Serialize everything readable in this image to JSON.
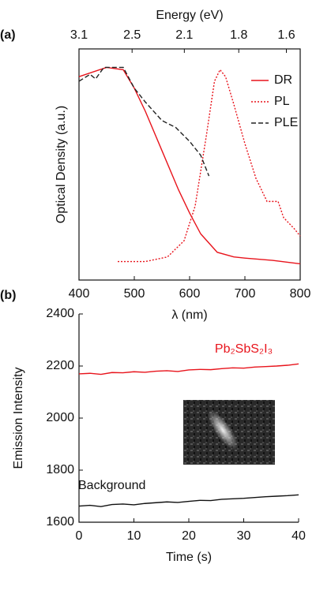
{
  "chart_data": [
    {
      "type": "line",
      "panel_label": "(a)",
      "x_label": "λ (nm)",
      "y_label": "Optical Density (a.u.)",
      "x2_label": "Energy (eV)",
      "xlim": [
        400,
        800
      ],
      "xticks": [
        400,
        500,
        600,
        700,
        800
      ],
      "x2ticks": [
        3.1,
        2.5,
        2.1,
        1.8,
        1.6
      ],
      "x2scale": "energy",
      "ylim": [
        0,
        1
      ],
      "legend": "upper right",
      "box": true,
      "series": [
        {
          "name": "DR",
          "color": "#e8141c",
          "dash": "solid",
          "x": [
            400,
            450,
            480,
            500,
            520,
            550,
            580,
            600,
            620,
            650,
            680,
            700,
            750,
            800
          ],
          "values": [
            0.88,
            0.92,
            0.91,
            0.83,
            0.73,
            0.56,
            0.39,
            0.29,
            0.2,
            0.12,
            0.1,
            0.095,
            0.085,
            0.07
          ]
        },
        {
          "name": "PL",
          "color": "#e8141c",
          "dash": "dotted",
          "x": [
            470,
            520,
            560,
            590,
            610,
            630,
            645,
            655,
            665,
            680,
            700,
            720,
            740,
            760,
            770,
            790,
            800
          ],
          "values": [
            0.08,
            0.08,
            0.1,
            0.17,
            0.32,
            0.62,
            0.86,
            0.91,
            0.88,
            0.76,
            0.59,
            0.44,
            0.34,
            0.34,
            0.27,
            0.22,
            0.19
          ]
        },
        {
          "name": "PLE",
          "color": "#222222",
          "dash": "dashed",
          "x": [
            400,
            420,
            430,
            445,
            480,
            500,
            520,
            550,
            575,
            600,
            620,
            635
          ],
          "values": [
            0.86,
            0.89,
            0.87,
            0.92,
            0.92,
            0.83,
            0.77,
            0.69,
            0.66,
            0.6,
            0.54,
            0.45
          ]
        }
      ]
    },
    {
      "type": "line",
      "panel_label": "(b)",
      "x_label": "Time (s)",
      "y_label": "Emission Intensity",
      "xlim": [
        0,
        40
      ],
      "xticks": [
        0,
        10,
        20,
        30,
        40
      ],
      "ylim": [
        1600,
        2400
      ],
      "yticks": [
        1600,
        1800,
        2000,
        2200,
        2400
      ],
      "box": false,
      "series": [
        {
          "name": "Pb₂SbS₂I₃",
          "color": "#e8141c",
          "dash": "solid",
          "x": [
            0,
            2,
            4,
            6,
            8,
            10,
            12,
            14,
            16,
            18,
            20,
            22,
            24,
            26,
            28,
            30,
            32,
            34,
            36,
            38,
            40
          ],
          "values": [
            2170,
            2172,
            2168,
            2175,
            2174,
            2178,
            2176,
            2180,
            2182,
            2179,
            2185,
            2187,
            2186,
            2190,
            2193,
            2192,
            2196,
            2198,
            2200,
            2203,
            2208
          ]
        },
        {
          "name": "Background",
          "color": "#111111",
          "dash": "solid",
          "x": [
            0,
            2,
            4,
            6,
            8,
            10,
            12,
            14,
            16,
            18,
            20,
            22,
            24,
            26,
            28,
            30,
            32,
            34,
            36,
            38,
            40
          ],
          "values": [
            1662,
            1665,
            1660,
            1668,
            1670,
            1667,
            1672,
            1675,
            1678,
            1676,
            1680,
            1684,
            1683,
            1688,
            1690,
            1692,
            1695,
            1698,
            1700,
            1702,
            1705
          ]
        }
      ]
    }
  ]
}
